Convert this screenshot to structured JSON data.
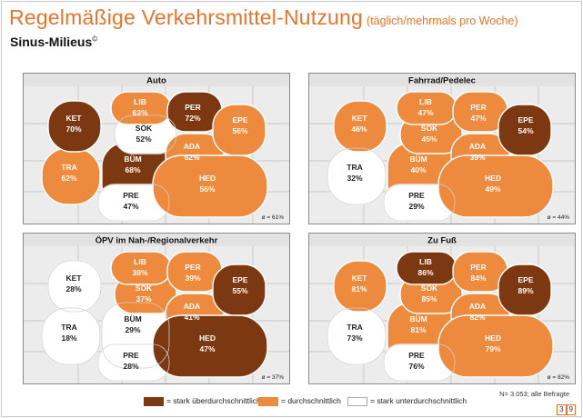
{
  "header": {
    "title": "Regelmäßige Verkehrsmittel-Nutzung",
    "title_note": "(täglich/mehrmals pro Woche)",
    "subtitle": "Sinus-Milieus",
    "subtitle_mark": "©"
  },
  "colors": {
    "above": "#7b3811",
    "average": "#ee8a3e",
    "below": "#ffffff",
    "accent": "#e8732a"
  },
  "chart_data": [
    {
      "type": "map",
      "title": "Auto",
      "avg": "ø = 61%",
      "milieus": [
        {
          "code": "KET",
          "value": "70%",
          "level": "above"
        },
        {
          "code": "LIB",
          "value": "63%",
          "level": "average"
        },
        {
          "code": "PER",
          "value": "72%",
          "level": "above"
        },
        {
          "code": "SÖK",
          "value": "52%",
          "level": "below"
        },
        {
          "code": "EPE",
          "value": "56%",
          "level": "average"
        },
        {
          "code": "ADA",
          "value": "62%",
          "level": "average"
        },
        {
          "code": "BÜM",
          "value": "68%",
          "level": "above"
        },
        {
          "code": "TRA",
          "value": "62%",
          "level": "average"
        },
        {
          "code": "HED",
          "value": "56%",
          "level": "average"
        },
        {
          "code": "PRE",
          "value": "47%",
          "level": "below"
        }
      ]
    },
    {
      "type": "map",
      "title": "Fahrrad/Pedelec",
      "avg": "ø = 44%",
      "milieus": [
        {
          "code": "KET",
          "value": "46%",
          "level": "average"
        },
        {
          "code": "LIB",
          "value": "47%",
          "level": "average"
        },
        {
          "code": "PER",
          "value": "47%",
          "level": "average"
        },
        {
          "code": "SÖK",
          "value": "45%",
          "level": "average"
        },
        {
          "code": "EPE",
          "value": "54%",
          "level": "above"
        },
        {
          "code": "ADA",
          "value": "39%",
          "level": "average"
        },
        {
          "code": "BÜM",
          "value": "40%",
          "level": "average"
        },
        {
          "code": "TRA",
          "value": "32%",
          "level": "below"
        },
        {
          "code": "HED",
          "value": "49%",
          "level": "average"
        },
        {
          "code": "PRE",
          "value": "29%",
          "level": "below"
        }
      ]
    },
    {
      "type": "map",
      "title": "ÖPV im Nah-/Regionalverkehr",
      "avg": "ø = 37%",
      "milieus": [
        {
          "code": "KET",
          "value": "28%",
          "level": "below"
        },
        {
          "code": "LIB",
          "value": "38%",
          "level": "average"
        },
        {
          "code": "PER",
          "value": "39%",
          "level": "average"
        },
        {
          "code": "SÖK",
          "value": "37%",
          "level": "average"
        },
        {
          "code": "EPE",
          "value": "55%",
          "level": "above"
        },
        {
          "code": "ADA",
          "value": "41%",
          "level": "average"
        },
        {
          "code": "BÜM",
          "value": "29%",
          "level": "below"
        },
        {
          "code": "TRA",
          "value": "18%",
          "level": "below"
        },
        {
          "code": "HED",
          "value": "47%",
          "level": "above"
        },
        {
          "code": "PRE",
          "value": "28%",
          "level": "below"
        }
      ]
    },
    {
      "type": "map",
      "title": "Zu Fuß",
      "avg": "ø = 82%",
      "milieus": [
        {
          "code": "KET",
          "value": "81%",
          "level": "average"
        },
        {
          "code": "LIB",
          "value": "86%",
          "level": "above"
        },
        {
          "code": "PER",
          "value": "84%",
          "level": "average"
        },
        {
          "code": "SÖK",
          "value": "85%",
          "level": "average"
        },
        {
          "code": "EPE",
          "value": "89%",
          "level": "above"
        },
        {
          "code": "ADA",
          "value": "82%",
          "level": "average"
        },
        {
          "code": "BÜM",
          "value": "81%",
          "level": "average"
        },
        {
          "code": "TRA",
          "value": "73%",
          "level": "below"
        },
        {
          "code": "HED",
          "value": "79%",
          "level": "average"
        },
        {
          "code": "PRE",
          "value": "76%",
          "level": "below"
        }
      ]
    }
  ],
  "legend": {
    "above": "= stark überdurchschnittlich",
    "average": "= durchschnittlich",
    "below": "= stark unterdurchschnittlich"
  },
  "footnote": "N= 3.053; alle Befragte",
  "page": [
    "3",
    "9"
  ]
}
